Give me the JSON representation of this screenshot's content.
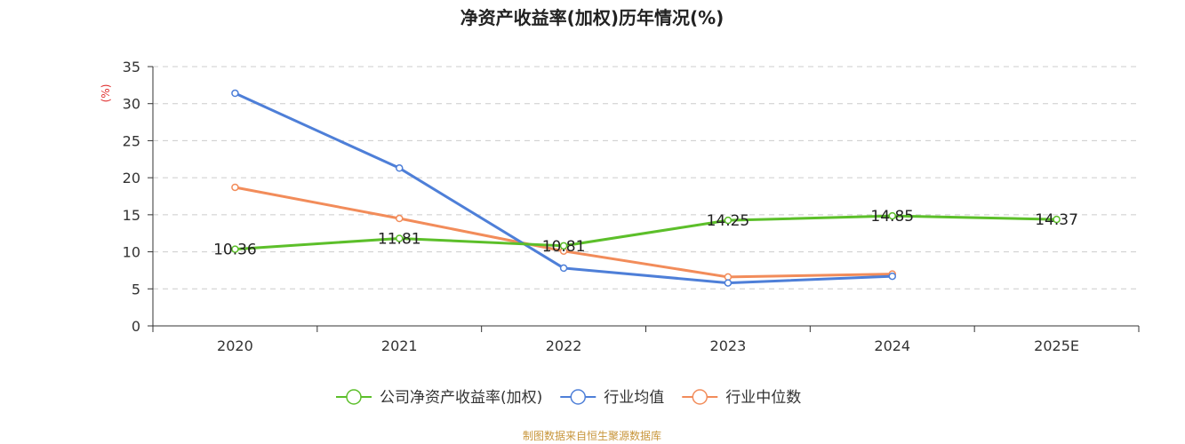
{
  "chart_data": {
    "type": "line",
    "title": "净资产收益率(加权)历年情况(%)",
    "ylabel": "(%)",
    "xlabel": "",
    "categories": [
      "2020",
      "2021",
      "2022",
      "2023",
      "2024",
      "2025E"
    ],
    "ylim": [
      0,
      35
    ],
    "yticks": [
      0,
      5,
      10,
      15,
      20,
      25,
      30,
      35
    ],
    "grid": true,
    "legend_position": "bottom",
    "series": [
      {
        "name": "公司净资产收益率(加权)",
        "color": "#5cbf2a",
        "values": [
          10.36,
          11.81,
          10.81,
          14.25,
          14.85,
          14.37
        ],
        "labels": [
          "10.36",
          "11.81",
          "10.81",
          "14.25",
          "14.85",
          "14.37"
        ]
      },
      {
        "name": "行业均值",
        "color": "#4e7fd8",
        "values": [
          31.4,
          21.3,
          7.8,
          5.8,
          6.7,
          null
        ]
      },
      {
        "name": "行业中位数",
        "color": "#f28c5a",
        "values": [
          18.7,
          14.5,
          10.1,
          6.6,
          7.0,
          null
        ]
      }
    ],
    "source": "制图数据来自恒生聚源数据库"
  },
  "colors": {
    "ylabel": "#e03030",
    "source": "#c8963c",
    "grid": "#cccccc",
    "axis": "#333333"
  }
}
